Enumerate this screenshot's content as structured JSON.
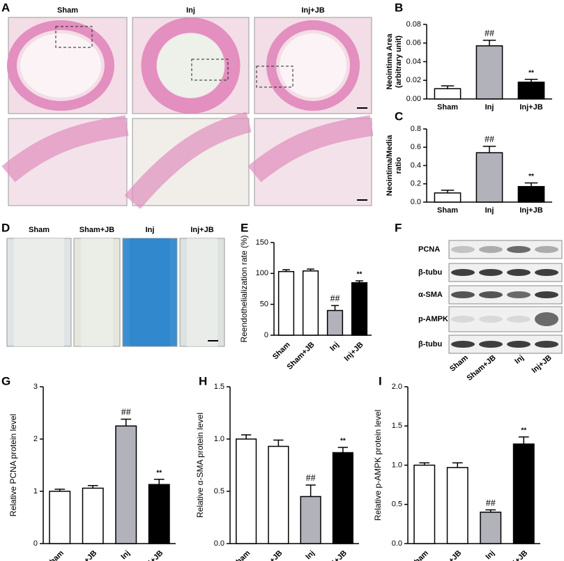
{
  "figure": {
    "A": {
      "label": "A",
      "columns": [
        "Sham",
        "Inj",
        "Inj+JB"
      ]
    },
    "D": {
      "label": "D",
      "columns": [
        "Sham",
        "Sham+JB",
        "Inj",
        "Inj+JB"
      ]
    },
    "F": {
      "label": "F",
      "rows": [
        "PCNA",
        "β-tubu",
        "α-SMA",
        "p-AMPK",
        "β-tubu"
      ],
      "columns": [
        "Sham",
        "Sham+JB",
        "Inj",
        "Inj+JB"
      ]
    }
  },
  "chart_data": [
    {
      "type": "bar",
      "panel": "B",
      "ylabel": [
        "Neointima Area",
        "(arbitrary unit)"
      ],
      "categories": [
        "Sham",
        "Inj",
        "Inj+JB"
      ],
      "values": [
        0.011,
        0.057,
        0.018
      ],
      "errors": [
        0.003,
        0.006,
        0.003
      ],
      "annotations": [
        null,
        "##",
        "**"
      ],
      "colors": [
        "#ffffff",
        "#b2b2ba",
        "#000000"
      ],
      "ylim": [
        0,
        0.08
      ],
      "yticks": [
        {
          "value": 0,
          "label": "0.00"
        },
        {
          "value": 0.02,
          "label": "0.02"
        },
        {
          "value": 0.04,
          "label": "0.04"
        },
        {
          "value": 0.06,
          "label": "0.06"
        },
        {
          "value": 0.08,
          "label": "0.08"
        }
      ]
    },
    {
      "type": "bar",
      "panel": "C",
      "ylabel": [
        "Neointima/Media",
        "ratio"
      ],
      "categories": [
        "Sham",
        "Inj",
        "Inj+JB"
      ],
      "values": [
        0.1,
        0.54,
        0.17
      ],
      "errors": [
        0.03,
        0.07,
        0.04
      ],
      "annotations": [
        null,
        "##",
        "**"
      ],
      "colors": [
        "#ffffff",
        "#b2b2ba",
        "#000000"
      ],
      "ylim": [
        0,
        0.8
      ],
      "yticks": [
        {
          "value": 0,
          "label": "0.0"
        },
        0.2,
        0.4,
        0.6,
        0.8
      ]
    },
    {
      "type": "bar",
      "panel": "E",
      "ylabel": [
        "Reendothelialization rate (%)"
      ],
      "categories": [
        "Sham",
        "Sham+JB",
        "Inj",
        "Inj+JB"
      ],
      "values": [
        103,
        104,
        40,
        85
      ],
      "errors": [
        3,
        3,
        8,
        3
      ],
      "annotations": [
        null,
        null,
        "##",
        "**"
      ],
      "colors": [
        "#ffffff",
        "#ffffff",
        "#b2b2ba",
        "#000000"
      ],
      "ylim": [
        0,
        150
      ],
      "yticks": [
        0,
        50,
        100,
        150
      ]
    },
    {
      "type": "bar",
      "panel": "G",
      "ylabel": [
        "Relative PCNA protein level"
      ],
      "categories": [
        "Sham",
        "Sham+JB",
        "Inj",
        "Inj+JB"
      ],
      "values": [
        1.0,
        1.06,
        2.25,
        1.13
      ],
      "errors": [
        0.04,
        0.05,
        0.13,
        0.1
      ],
      "annotations": [
        null,
        null,
        "##",
        "**"
      ],
      "colors": [
        "#ffffff",
        "#ffffff",
        "#b2b2ba",
        "#000000"
      ],
      "ylim": [
        0,
        3
      ],
      "yticks": [
        0,
        1,
        2,
        3
      ]
    },
    {
      "type": "bar",
      "panel": "H",
      "ylabel": [
        "Relative α-SMA protein level"
      ],
      "categories": [
        "Sham",
        "Sham+JB",
        "Inj",
        "Inj+JB"
      ],
      "values": [
        1.0,
        0.93,
        0.45,
        0.87
      ],
      "errors": [
        0.04,
        0.06,
        0.11,
        0.05
      ],
      "annotations": [
        null,
        null,
        "##",
        "**"
      ],
      "colors": [
        "#ffffff",
        "#ffffff",
        "#b2b2ba",
        "#000000"
      ],
      "ylim": [
        0,
        1.5
      ],
      "yticks": [
        {
          "value": 0,
          "label": "0.0"
        },
        0.5,
        {
          "value": 1,
          "label": "1.0"
        },
        1.5
      ]
    },
    {
      "type": "bar",
      "panel": "I",
      "ylabel": [
        "Relative p-AMPK protein level"
      ],
      "categories": [
        "Sham",
        "Sham+JB",
        "Inj",
        "Inj+JB"
      ],
      "values": [
        1.0,
        0.97,
        0.4,
        1.27
      ],
      "errors": [
        0.03,
        0.06,
        0.03,
        0.09
      ],
      "annotations": [
        null,
        null,
        "##",
        "**"
      ],
      "colors": [
        "#ffffff",
        "#ffffff",
        "#b2b2ba",
        "#000000"
      ],
      "ylim": [
        0,
        2.0
      ],
      "yticks": [
        {
          "value": 0,
          "label": "0.0"
        },
        0.5,
        {
          "value": 1,
          "label": "1.0"
        },
        1.5,
        {
          "value": 2,
          "label": "2.0"
        }
      ]
    }
  ]
}
